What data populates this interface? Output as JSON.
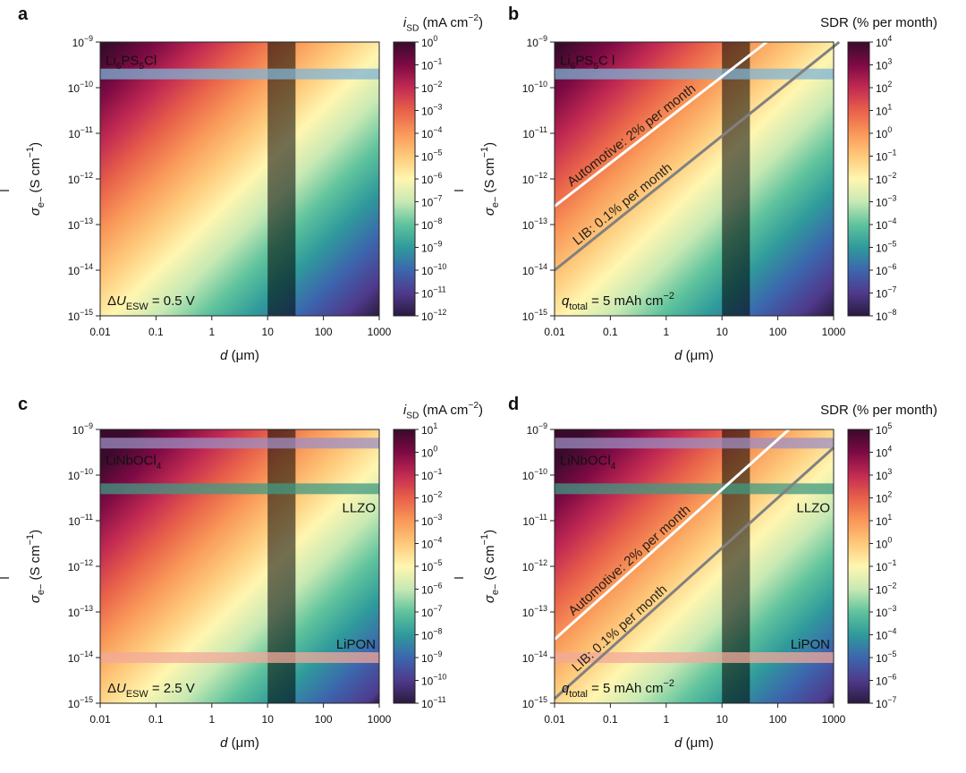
{
  "panels": [
    {
      "letter": "a",
      "colorbar_title": "i_SD (mA cm^-2)",
      "cb_log_min": -12,
      "cb_log_max": 0,
      "note": "ΔU_ESW = 0.5 V",
      "materials": [
        {
          "name": "Li6PS5Cl",
          "log_sigma": -9.7,
          "color": "#7fb3d5",
          "text_color": "#9ecae8",
          "label_side": "left"
        }
      ],
      "lines": []
    },
    {
      "letter": "b",
      "colorbar_title": "SDR (% per month)",
      "cb_log_min": -8,
      "cb_log_max": 4,
      "note": "q_total = 5 mAh cm^-2",
      "materials": [
        {
          "name": "Li6PS5C l",
          "log_sigma": -9.7,
          "color": "#7fb3d5",
          "text_color": "#9ecae8",
          "label_side": "left"
        }
      ],
      "lines": [
        {
          "label": "Automotive: 2% per month",
          "color": "#ffffff",
          "start": [
            -2,
            -12.6
          ],
          "end": [
            1.8,
            -9.0
          ]
        },
        {
          "label": "LIB: 0.1% per month",
          "color": "#808080",
          "start": [
            -2,
            -14.0
          ],
          "end": [
            3.1,
            -9.0
          ]
        }
      ]
    },
    {
      "letter": "c",
      "colorbar_title": "i_SD (mA cm^-2)",
      "cb_log_min": -11,
      "cb_log_max": 1,
      "note": "ΔU_ESW = 2.5 V",
      "materials": [
        {
          "name": "LiNbOCl4",
          "log_sigma": -9.3,
          "color": "#9e8fc4",
          "text_color": "#b9a9e0",
          "label_side": "left"
        },
        {
          "name": "LLZO",
          "log_sigma": -10.3,
          "color": "#3f9a83",
          "text_color": "#2f8f7a",
          "label_side": "right"
        },
        {
          "name": "LiPON",
          "log_sigma": -14.0,
          "color": "#f2a899",
          "text_color": "#e9a090",
          "label_side": "right"
        }
      ],
      "lines": []
    },
    {
      "letter": "d",
      "colorbar_title": "SDR (% per month)",
      "cb_log_min": -7,
      "cb_log_max": 5,
      "note": "q_total = 5 mAh cm^-2",
      "materials": [
        {
          "name": "LiNbOCl4",
          "log_sigma": -9.3,
          "color": "#9e8fc4",
          "text_color": "#b9a9e0",
          "label_side": "left"
        },
        {
          "name": "LLZO",
          "log_sigma": -10.3,
          "color": "#3f9a83",
          "text_color": "#2f8f7a",
          "label_side": "right"
        },
        {
          "name": "LiPON",
          "log_sigma": -14.0,
          "color": "#f2a899",
          "text_color": "#e9a090",
          "label_side": "right"
        }
      ],
      "lines": [
        {
          "label": "Automotive: 2% per month",
          "color": "#ffffff",
          "start": [
            -2,
            -13.6
          ],
          "end": [
            2.2,
            -9.0
          ]
        },
        {
          "label": "LIB: 0.1% per month",
          "color": "#808080",
          "start": [
            -2,
            -14.9
          ],
          "end": [
            3.0,
            -9.4
          ]
        }
      ]
    }
  ],
  "xlabel": "d (μm)",
  "ylabel": "σe− (S cm−1)",
  "xticks": [
    "0.01",
    "0.1",
    "1",
    "10",
    "100",
    "1000"
  ],
  "xlog_range": [
    -2,
    3
  ],
  "ylog_range": [
    -15,
    -9
  ],
  "highlight_band_log_d": [
    1.0,
    1.5
  ],
  "colors": {
    "cmap": [
      "#2a1a3e",
      "#4f3a8c",
      "#3c66ae",
      "#2f9a9b",
      "#5fc39d",
      "#c7e9b4",
      "#fff6b0",
      "#fec97a",
      "#f99858",
      "#e8604a",
      "#c22a52",
      "#7d0a44",
      "#3a0a2c"
    ]
  }
}
